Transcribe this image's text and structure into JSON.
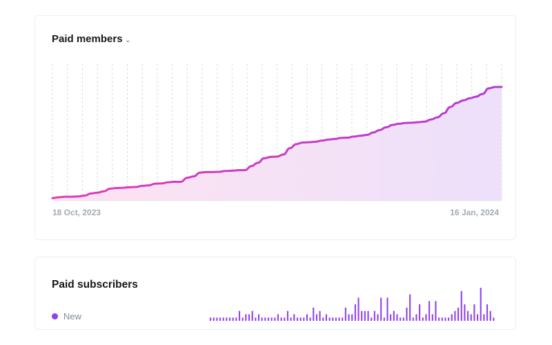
{
  "paid_members_card": {
    "title": "Paid members",
    "dropdown_icon": "chevron-down-icon",
    "start_label": "18 Oct, 2023",
    "end_label": "16 Jan, 2024"
  },
  "paid_subscribers_card": {
    "title": "Paid subscribers",
    "legend_label": "New",
    "legend_color": "#8e42ee"
  },
  "colors": {
    "line_start": "#e13bb4",
    "line_end": "#b33ad6",
    "area_start": "#fde3f1",
    "area_end": "#ede0fa",
    "bar": "#8e42ee",
    "grid": "#d7dbe0"
  },
  "chart_data": [
    {
      "type": "area",
      "title": "Paid members",
      "x_start": "18 Oct, 2023",
      "x_end": "16 Jan, 2024",
      "grid_vertical": true,
      "series": [
        {
          "name": "Paid members",
          "values": [
            1,
            1.3,
            1.5,
            1.5,
            1.6,
            1.9,
            2.7,
            3.0,
            3.5,
            4.5,
            4.7,
            4.8,
            5.0,
            5.1,
            5.5,
            5.7,
            6.3,
            6.4,
            6.8,
            7.0,
            7.0,
            8.5,
            9.0,
            10.4,
            10.6,
            10.6,
            10.7,
            11.0,
            11.1,
            11.3,
            11.3,
            12.8,
            14.0,
            15.7,
            16.2,
            16.3,
            17.1,
            19.4,
            20.9,
            21.5,
            21.6,
            21.8,
            22.2,
            22.6,
            22.8,
            23.2,
            23.3,
            23.7,
            24.0,
            24.3,
            25.2,
            26.1,
            27.1,
            28.0,
            28.4,
            28.7,
            28.8,
            29.0,
            29.2,
            30.0,
            30.8,
            32.3,
            34.6,
            36.1,
            37.0,
            37.8,
            38.4,
            39.4,
            41.5,
            42.0,
            42.0
          ]
        }
      ]
    },
    {
      "type": "bar",
      "title": "Paid subscribers",
      "series": [
        {
          "name": "New",
          "values": [
            1,
            1,
            1,
            1,
            1,
            1,
            1,
            1,
            1,
            3,
            1,
            2,
            2,
            3,
            1,
            2,
            1,
            1,
            1,
            1,
            1,
            2,
            1,
            1,
            3,
            1,
            2,
            1,
            1,
            1,
            2,
            1,
            4,
            2,
            3,
            1,
            2,
            1,
            1,
            1,
            1,
            1,
            4,
            2,
            2,
            5,
            7,
            3,
            3,
            3,
            1,
            3,
            2,
            7,
            1,
            7,
            2,
            3,
            2,
            1,
            1,
            4,
            8,
            1,
            2,
            5,
            1,
            2,
            6,
            2,
            6,
            1,
            1,
            1,
            1,
            2,
            3,
            4,
            9,
            5,
            3,
            2,
            5,
            2,
            10,
            2,
            5,
            3,
            1
          ]
        }
      ]
    }
  ]
}
